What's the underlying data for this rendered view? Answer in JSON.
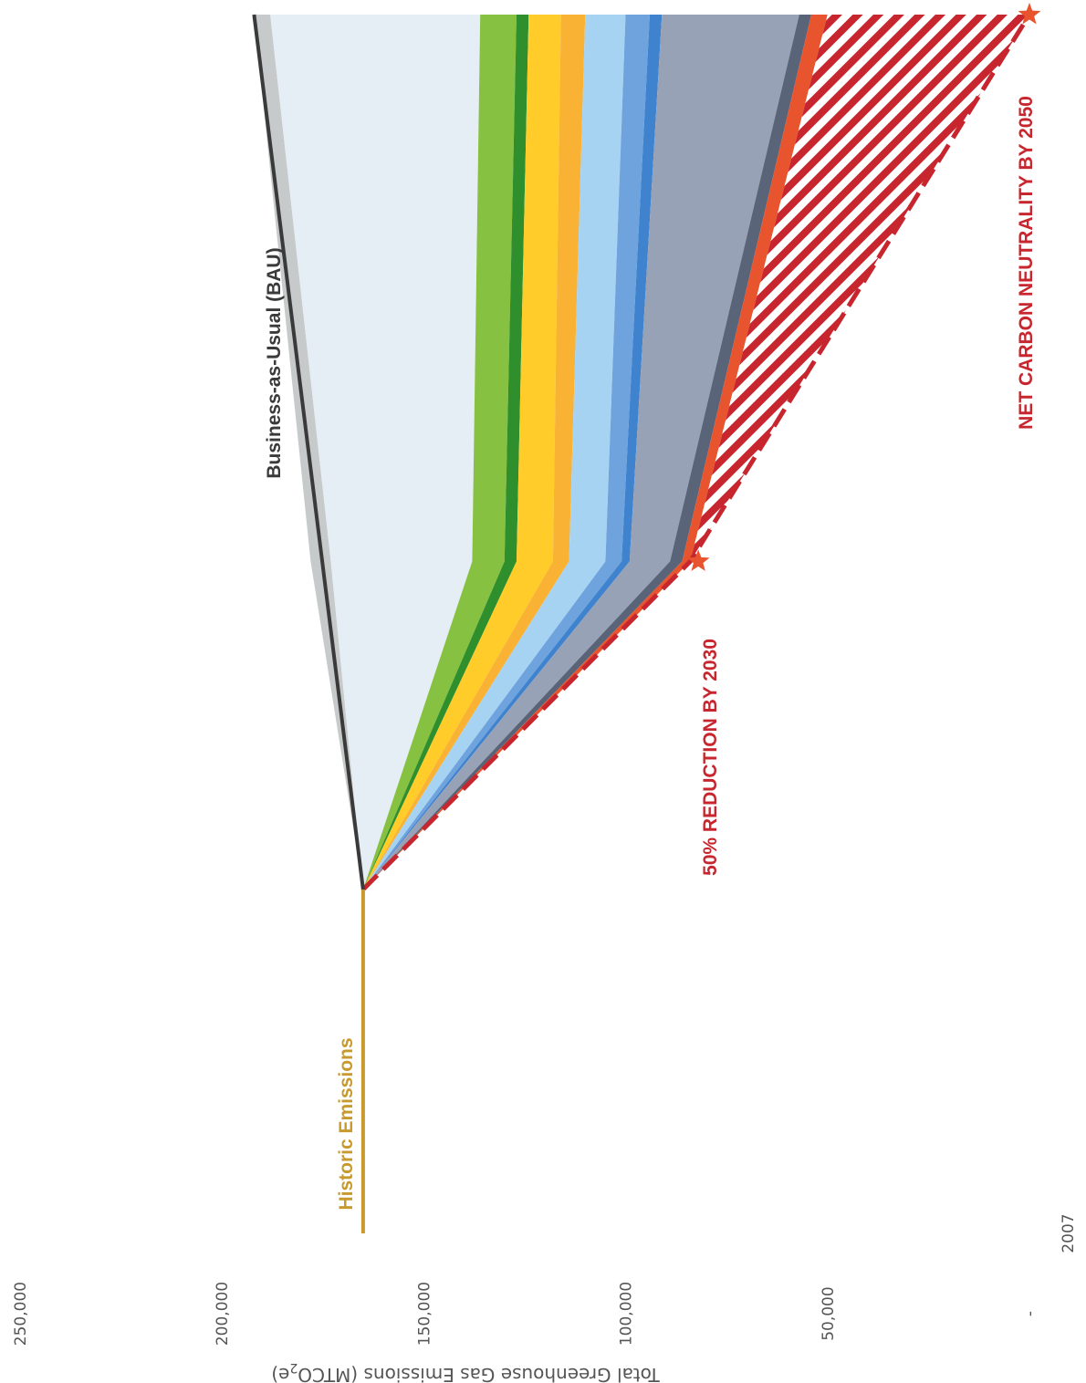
{
  "chart_data": {
    "type": "area",
    "orientation": "rotated-90-clockwise",
    "ylabel": "Total Greenhouse Gas Emissions (MTCO2e)",
    "ylabel_parts": {
      "main": "Total Greenhouse Gas Emissions (MTCO",
      "subscript": "2",
      "suffix": "e)"
    },
    "yticks": [
      0,
      50000,
      100000,
      150000,
      200000,
      250000
    ],
    "ytick_labels": [
      "-",
      "50,000",
      "100,000",
      "150,000",
      "200,000",
      "250,000"
    ],
    "ylim": [
      0,
      250000
    ],
    "xlim": [
      2007,
      2050
    ],
    "xtick_labels": [
      {
        "year": 2007,
        "label": "2007"
      }
    ],
    "grid": false,
    "series": [
      {
        "name": "Historic Emissions",
        "kind": "line",
        "color": "#c89a2e",
        "points": [
          [
            2007,
            165000
          ],
          [
            2018,
            165000
          ]
        ]
      },
      {
        "name": "Business-as-Usual (BAU)",
        "kind": "line",
        "color": "#3a3a3a",
        "points": [
          [
            2018,
            165000
          ],
          [
            2050,
            192000
          ]
        ]
      }
    ],
    "bands": [
      {
        "color": "#c7cacb",
        "upper": [
          165000,
          178000,
          192000
        ],
        "lower": [
          165000,
          173000,
          188000
        ]
      },
      {
        "color": "#e6eef5",
        "upper": [
          165000,
          173000,
          188000
        ],
        "lower": [
          165000,
          138000,
          136000
        ]
      },
      {
        "color": "#86c142",
        "upper": [
          165000,
          138000,
          136000
        ],
        "lower": [
          165000,
          130000,
          127000
        ]
      },
      {
        "color": "#2f8f2c",
        "upper": [
          165000,
          130000,
          127000
        ],
        "lower": [
          165000,
          127000,
          124000
        ]
      },
      {
        "color": "#ffcc29",
        "upper": [
          165000,
          127000,
          124000
        ],
        "lower": [
          165000,
          118000,
          116000
        ]
      },
      {
        "color": "#f9b233",
        "upper": [
          165000,
          118000,
          116000
        ],
        "lower": [
          165000,
          114000,
          110000
        ]
      },
      {
        "color": "#a7d3f3",
        "upper": [
          165000,
          114000,
          110000
        ],
        "lower": [
          165000,
          105000,
          100000
        ]
      },
      {
        "color": "#6fa3de",
        "upper": [
          165000,
          105000,
          100000
        ],
        "lower": [
          165000,
          101000,
          94000
        ]
      },
      {
        "color": "#3f83cf",
        "upper": [
          165000,
          101000,
          94000
        ],
        "lower": [
          165000,
          99000,
          91000
        ]
      },
      {
        "color": "#98a2b6",
        "upper": [
          165000,
          99000,
          91000
        ],
        "lower": [
          165000,
          89000,
          57000
        ]
      },
      {
        "color": "#5a6478",
        "upper": [
          165000,
          89000,
          57000
        ],
        "lower": [
          165000,
          86000,
          54000
        ]
      },
      {
        "color": "#e8542e",
        "upper": [
          165000,
          86000,
          54000
        ],
        "lower": [
          165000,
          84000,
          50000
        ]
      }
    ],
    "band_years": [
      2018,
      2030,
      2050
    ],
    "target_path": {
      "name": "target-pathway",
      "style": "hatched-dashed",
      "color": "#c8262e",
      "points": [
        [
          2018,
          165000
        ],
        [
          2030,
          84000
        ],
        [
          2050,
          0
        ]
      ]
    },
    "annotations": [
      {
        "text": "Historic Emissions",
        "color": "#c89a2e",
        "x": 2007,
        "y": 165000
      },
      {
        "text": "Business-as-Usual (BAU)",
        "color": "#3a3a3a",
        "x": 2018,
        "y": 185000
      },
      {
        "text": "50% REDUCTION BY 2030",
        "color": "#c8262e",
        "x": 2030,
        "y": 82000
      },
      {
        "text": "NET CARBON NEUTRALITY BY 2050",
        "color": "#c8262e",
        "x": 2050,
        "y": 0
      }
    ],
    "markers": [
      {
        "shape": "star",
        "color": "#e8542e",
        "x": 2030,
        "y": 82000
      },
      {
        "shape": "star",
        "color": "#e8542e",
        "x": 2050,
        "y": 0
      }
    ]
  }
}
